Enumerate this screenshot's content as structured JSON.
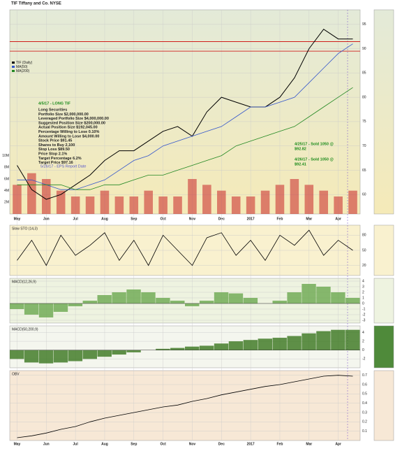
{
  "chart_data": [
    {
      "type": "line",
      "title": "TIF Tiffany and Co. NYSE",
      "categories": [
        "May",
        null,
        "Jun",
        null,
        "Jul",
        null,
        "Aug",
        null,
        "Sep",
        null,
        "Oct",
        null,
        "Nov",
        null,
        "Dec",
        null,
        "2017",
        null,
        "Feb",
        null,
        "Mar",
        null,
        "Apr",
        null
      ],
      "series": [
        {
          "name": "TIF (Daily)",
          "color": "#000000",
          "values": [
            66,
            61,
            59,
            60,
            62,
            64,
            67,
            69,
            69,
            71,
            73,
            74,
            72,
            77,
            80,
            79,
            78,
            78,
            80,
            84,
            90,
            94,
            92,
            92
          ]
        },
        {
          "name": "MA(50)",
          "color": "#3355cc",
          "values": [
            63,
            63,
            62,
            61,
            61,
            62,
            63,
            65,
            67,
            68,
            70,
            71,
            72,
            73,
            74,
            76,
            78,
            78,
            79,
            80,
            83,
            86,
            89,
            91
          ]
        },
        {
          "name": "MA(200)",
          "color": "#228822",
          "values": [
            62,
            62,
            62,
            62,
            61,
            61,
            62,
            62,
            63,
            64,
            64,
            65,
            66,
            67,
            68,
            70,
            71,
            72,
            73,
            74,
            76,
            78,
            80,
            82
          ]
        }
      ],
      "ylim": [
        56,
        98
      ],
      "yticks": [
        60,
        65,
        70,
        75,
        80,
        85,
        90,
        95
      ],
      "hlines": [
        91.45,
        89.5
      ],
      "hline_color": "#cc0000",
      "volume": {
        "color": "#cc3333",
        "values": [
          5,
          7,
          6,
          4,
          3,
          3,
          4,
          3,
          3,
          4,
          3,
          3,
          6,
          5,
          4,
          3,
          3,
          4,
          5,
          6,
          5,
          4,
          3,
          4
        ],
        "vlim": [
          0,
          12
        ],
        "vticks": [
          {
            "value": 2,
            "label": "2M"
          },
          {
            "value": 4,
            "label": "4M"
          },
          {
            "value": 6,
            "label": "6M"
          },
          {
            "value": 8,
            "label": "8M"
          },
          {
            "value": 10,
            "label": "10M"
          }
        ]
      },
      "trade_note": {
        "title": "4/5/17 - LONG TIF",
        "lines": [
          "Long Securities",
          "Portfolio Size $2,000,000.00",
          "Leveraged Portfolio Size $4,000,000.00",
          "Suggested Position Size $200,000.00",
          "Actual Position Size $192,045.00",
          "Percentage Willing to Lose 0.10%",
          "Amount Willing to Lose $4,000.00",
          "Stock Price $91.45",
          "Shares to Buy 2,100",
          "Stop Loss $89.50",
          "Price Stop 2.1%",
          "Target Percentage 6.2%",
          "Target Price $97.16"
        ]
      },
      "event_note": "5/26/17 - EPS Report Date",
      "sell_notes": [
        [
          "4/25/17 - Sold 1050 @",
          "$92.82"
        ],
        [
          "4/26/17 - Sold 1050 @",
          "$92.41"
        ]
      ]
    },
    {
      "type": "line",
      "title": "Slow STO (14,3)",
      "color": "#000000",
      "values": [
        30,
        70,
        20,
        80,
        40,
        60,
        85,
        30,
        70,
        20,
        80,
        50,
        20,
        75,
        85,
        40,
        70,
        30,
        80,
        60,
        90,
        40,
        70,
        50
      ],
      "ylim": [
        0,
        100
      ],
      "yticks": [
        20,
        50,
        80
      ]
    },
    {
      "type": "bar",
      "title": "MACD(12,26,9)",
      "color": "#6aa84f",
      "values": [
        -1,
        -2,
        -2.5,
        -1.5,
        -0.5,
        0.5,
        1.5,
        2,
        2.5,
        2,
        1,
        0.5,
        -0.5,
        0.5,
        2,
        1.8,
        1,
        0,
        0.5,
        2,
        3.5,
        3,
        2,
        1
      ],
      "ylim": [
        -3.5,
        4.5
      ],
      "yticks": [
        -3,
        -2,
        -1,
        0,
        1,
        2,
        3,
        4
      ]
    },
    {
      "type": "bar",
      "title": "MACD(50,200,9)",
      "color": "#38761d",
      "values": [
        -2,
        -2.8,
        -3,
        -2.8,
        -2.5,
        -2,
        -1.5,
        -1,
        -0.5,
        0,
        0.3,
        0.5,
        0.8,
        1,
        1.5,
        2,
        2.3,
        2.6,
        2.8,
        3.2,
        3.8,
        4.3,
        4.6,
        4.6
      ],
      "ylim": [
        -4,
        5.5
      ],
      "yticks": [
        -2,
        0,
        2,
        4
      ]
    },
    {
      "type": "line",
      "title": "OBV",
      "color": "#000000",
      "values": [
        0.03,
        0.05,
        0.08,
        0.12,
        0.15,
        0.2,
        0.24,
        0.27,
        0.3,
        0.33,
        0.36,
        0.38,
        0.42,
        0.45,
        0.49,
        0.52,
        0.55,
        0.58,
        0.6,
        0.63,
        0.66,
        0.69,
        0.7,
        0.69
      ],
      "ylim": [
        0,
        0.75
      ],
      "yticks": [
        0.1,
        0.2,
        0.3,
        0.4,
        0.5,
        0.6,
        0.7
      ]
    }
  ]
}
